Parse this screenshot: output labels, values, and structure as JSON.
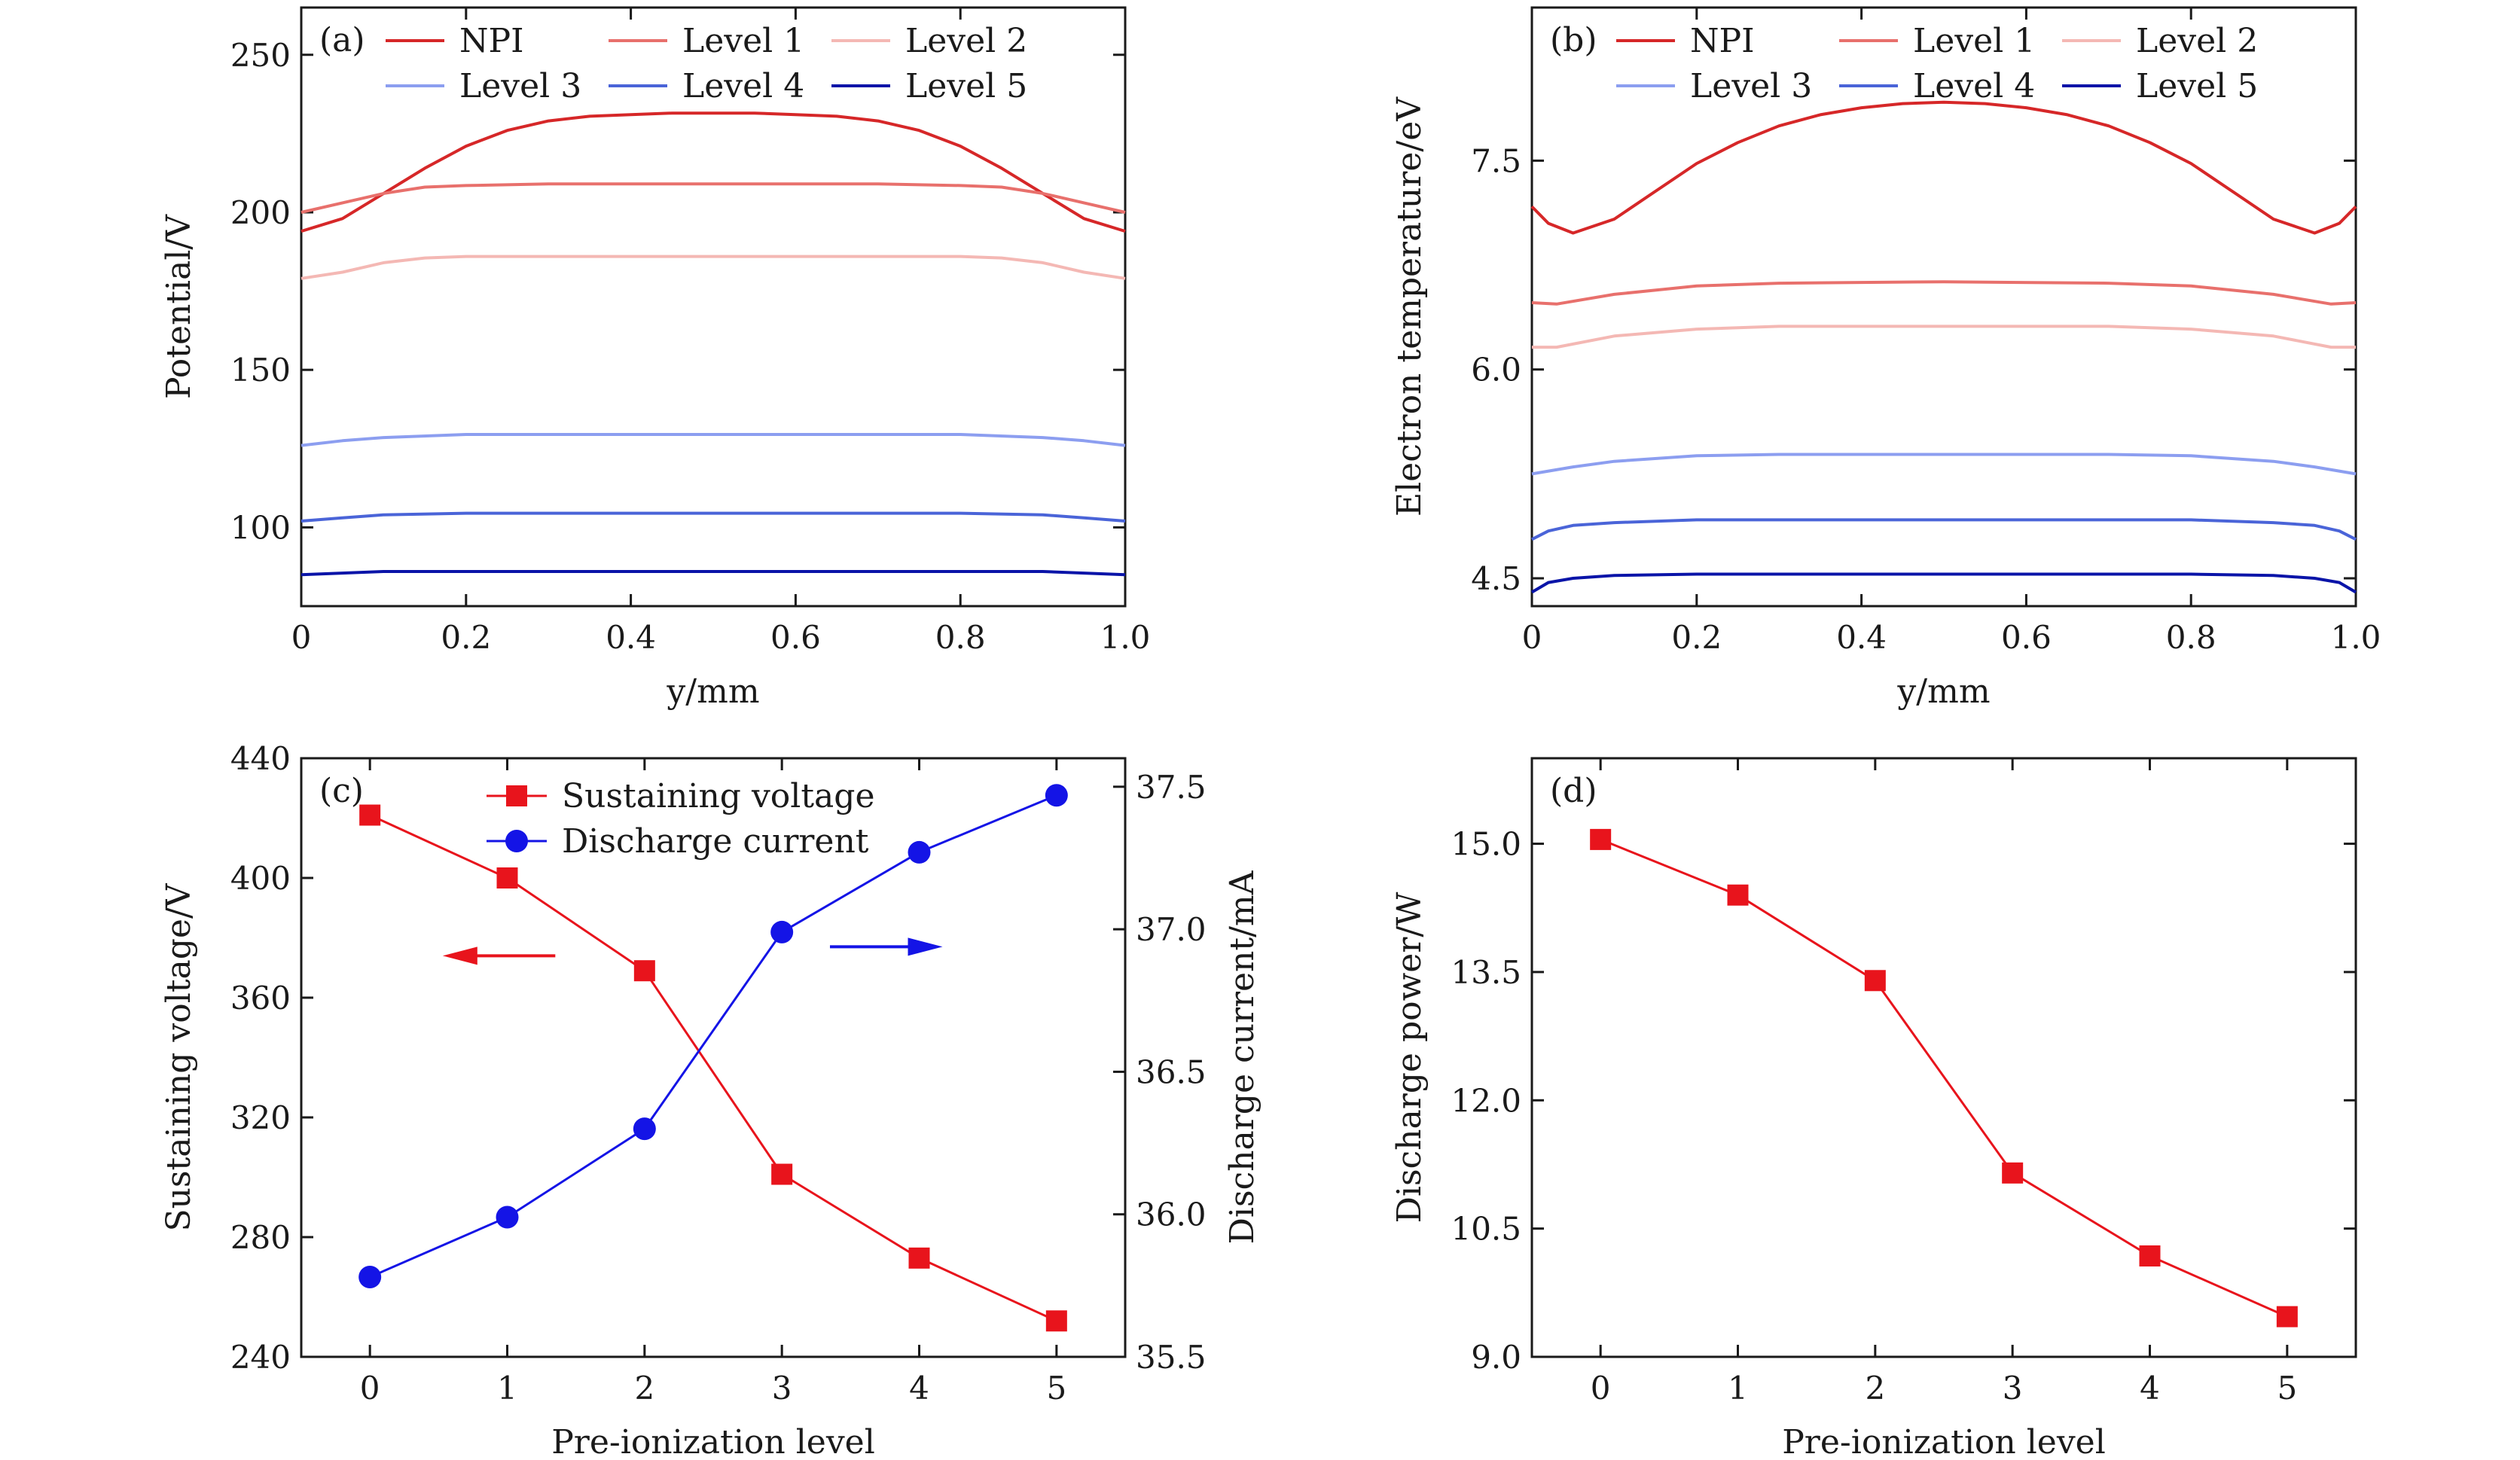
{
  "chart_data": [
    {
      "panel": "(a)",
      "type": "line",
      "xlabel": "y/mm",
      "ylabel": "Potential/V",
      "xlim": [
        0,
        1.0
      ],
      "ylim": [
        75,
        265
      ],
      "xticks": [
        "0",
        "0.2",
        "0.4",
        "0.6",
        "0.8",
        "1.0"
      ],
      "xtick_values": [
        0,
        0.2,
        0.4,
        0.6,
        0.8,
        1.0
      ],
      "yticks": [
        "100",
        "150",
        "200",
        "250"
      ],
      "ytick_values": [
        100,
        150,
        200,
        250
      ],
      "legend_position": "top",
      "series": [
        {
          "name": "NPI",
          "color": "#d62728",
          "x": [
            0,
            0.05,
            0.1,
            0.15,
            0.2,
            0.25,
            0.3,
            0.35,
            0.4,
            0.45,
            0.5,
            0.55,
            0.6,
            0.65,
            0.7,
            0.75,
            0.8,
            0.85,
            0.9,
            0.95,
            1.0
          ],
          "y": [
            194,
            198,
            206,
            214,
            221,
            226,
            229,
            230.5,
            231,
            231.5,
            231.5,
            231.5,
            231,
            230.5,
            229,
            226,
            221,
            214,
            206,
            198,
            194
          ]
        },
        {
          "name": "Level 1",
          "color": "#e8706c",
          "x": [
            0,
            0.05,
            0.1,
            0.15,
            0.2,
            0.3,
            0.5,
            0.7,
            0.8,
            0.85,
            0.9,
            0.95,
            1.0
          ],
          "y": [
            200,
            203,
            206,
            208,
            208.5,
            209,
            209,
            209,
            208.5,
            208,
            206,
            203,
            200
          ]
        },
        {
          "name": "Level 2",
          "color": "#f4b8b4",
          "x": [
            0,
            0.05,
            0.1,
            0.15,
            0.2,
            0.3,
            0.5,
            0.7,
            0.8,
            0.85,
            0.9,
            0.95,
            1.0
          ],
          "y": [
            179,
            181,
            184,
            185.5,
            186,
            186,
            186,
            186,
            186,
            185.5,
            184,
            181,
            179
          ]
        },
        {
          "name": "Level 3",
          "color": "#8c9ef0",
          "x": [
            0,
            0.05,
            0.1,
            0.2,
            0.3,
            0.5,
            0.7,
            0.8,
            0.9,
            0.95,
            1.0
          ],
          "y": [
            126,
            127.5,
            128.5,
            129.5,
            129.5,
            129.5,
            129.5,
            129.5,
            128.5,
            127.5,
            126
          ]
        },
        {
          "name": "Level 4",
          "color": "#4a64d8",
          "x": [
            0,
            0.05,
            0.1,
            0.2,
            0.3,
            0.5,
            0.7,
            0.8,
            0.9,
            0.95,
            1.0
          ],
          "y": [
            102,
            103,
            104,
            104.5,
            104.5,
            104.5,
            104.5,
            104.5,
            104,
            103,
            102
          ]
        },
        {
          "name": "Level 5",
          "color": "#0a14a8",
          "x": [
            0,
            0.05,
            0.1,
            0.2,
            0.5,
            0.8,
            0.9,
            0.95,
            1.0
          ],
          "y": [
            85,
            85.5,
            86,
            86,
            86,
            86,
            86,
            85.5,
            85
          ]
        }
      ]
    },
    {
      "panel": "(b)",
      "type": "line",
      "xlabel": "y/mm",
      "ylabel": "Electron temperature/eV",
      "xlim": [
        0,
        1.0
      ],
      "ylim": [
        4.3,
        8.6
      ],
      "xticks": [
        "0",
        "0.2",
        "0.4",
        "0.6",
        "0.8",
        "1.0"
      ],
      "xtick_values": [
        0,
        0.2,
        0.4,
        0.6,
        0.8,
        1.0
      ],
      "yticks": [
        "4.5",
        "6.0",
        "7.5"
      ],
      "ytick_values": [
        4.5,
        6.0,
        7.5
      ],
      "legend_position": "top",
      "series": [
        {
          "name": "NPI",
          "color": "#d62728",
          "x": [
            0,
            0.02,
            0.05,
            0.1,
            0.15,
            0.2,
            0.25,
            0.3,
            0.35,
            0.4,
            0.45,
            0.5,
            0.55,
            0.6,
            0.65,
            0.7,
            0.75,
            0.8,
            0.85,
            0.9,
            0.95,
            0.98,
            1.0
          ],
          "y": [
            7.17,
            7.05,
            6.98,
            7.08,
            7.28,
            7.48,
            7.63,
            7.75,
            7.83,
            7.88,
            7.91,
            7.92,
            7.91,
            7.88,
            7.83,
            7.75,
            7.63,
            7.48,
            7.28,
            7.08,
            6.98,
            7.05,
            7.17
          ]
        },
        {
          "name": "Level 1",
          "color": "#e8706c",
          "x": [
            0,
            0.03,
            0.1,
            0.2,
            0.3,
            0.5,
            0.7,
            0.8,
            0.9,
            0.97,
            1.0
          ],
          "y": [
            6.48,
            6.47,
            6.54,
            6.6,
            6.62,
            6.63,
            6.62,
            6.6,
            6.54,
            6.47,
            6.48
          ]
        },
        {
          "name": "Level 2",
          "color": "#f4b8b4",
          "x": [
            0,
            0.03,
            0.1,
            0.2,
            0.3,
            0.5,
            0.7,
            0.8,
            0.9,
            0.97,
            1.0
          ],
          "y": [
            6.16,
            6.16,
            6.24,
            6.29,
            6.31,
            6.31,
            6.31,
            6.29,
            6.24,
            6.16,
            6.16
          ]
        },
        {
          "name": "Level 3",
          "color": "#8c9ef0",
          "x": [
            0,
            0.05,
            0.1,
            0.2,
            0.3,
            0.5,
            0.7,
            0.8,
            0.9,
            0.95,
            1.0
          ],
          "y": [
            5.25,
            5.3,
            5.34,
            5.38,
            5.39,
            5.39,
            5.39,
            5.38,
            5.34,
            5.3,
            5.25
          ]
        },
        {
          "name": "Level 4",
          "color": "#4a64d8",
          "x": [
            0,
            0.02,
            0.05,
            0.1,
            0.2,
            0.3,
            0.5,
            0.7,
            0.8,
            0.9,
            0.95,
            0.98,
            1.0
          ],
          "y": [
            4.78,
            4.84,
            4.88,
            4.9,
            4.92,
            4.92,
            4.92,
            4.92,
            4.92,
            4.9,
            4.88,
            4.84,
            4.78
          ]
        },
        {
          "name": "Level 5",
          "color": "#0a14a8",
          "x": [
            0,
            0.02,
            0.05,
            0.1,
            0.2,
            0.5,
            0.8,
            0.9,
            0.95,
            0.98,
            1.0
          ],
          "y": [
            4.4,
            4.47,
            4.5,
            4.52,
            4.53,
            4.53,
            4.53,
            4.52,
            4.5,
            4.47,
            4.4
          ]
        }
      ]
    },
    {
      "panel": "(c)",
      "type": "line",
      "xlabel": "Pre-ionization level",
      "ylabel": "Sustaining voltage/V",
      "ylabel_right": "Discharge current/mA",
      "xlim": [
        -0.5,
        5.5
      ],
      "ylim": [
        240,
        440
      ],
      "ylim_right": [
        35.5,
        37.6
      ],
      "xticks": [
        "0",
        "1",
        "2",
        "3",
        "4",
        "5"
      ],
      "xtick_values": [
        0,
        1,
        2,
        3,
        4,
        5
      ],
      "yticks": [
        "240",
        "280",
        "320",
        "360",
        "400",
        "440"
      ],
      "ytick_values": [
        240,
        280,
        320,
        360,
        400,
        440
      ],
      "yticks_right": [
        "35.5",
        "36.0",
        "36.5",
        "37.0",
        "37.5"
      ],
      "ytick_values_right": [
        35.5,
        36.0,
        36.5,
        37.0,
        37.5
      ],
      "legend_position": "top",
      "series": [
        {
          "name": "Sustaining voltage",
          "axis": "left",
          "marker": "square",
          "color": "#e8141c",
          "x": [
            0,
            1,
            2,
            3,
            4,
            5
          ],
          "y": [
            421,
            400,
            369,
            301,
            273,
            252
          ]
        },
        {
          "name": "Discharge current",
          "axis": "right",
          "marker": "circle",
          "color": "#1414e6",
          "x": [
            0,
            1,
            2,
            3,
            4,
            5
          ],
          "y": [
            35.78,
            35.99,
            36.3,
            36.99,
            37.27,
            37.47
          ]
        }
      ],
      "arrows": [
        {
          "direction": "left",
          "color": "#e8141c"
        },
        {
          "direction": "right",
          "color": "#1414e6"
        }
      ]
    },
    {
      "panel": "(d)",
      "type": "line",
      "xlabel": "Pre-ionization level",
      "ylabel": "Discharge power/W",
      "xlim": [
        -0.5,
        5.5
      ],
      "ylim": [
        9.0,
        16.0
      ],
      "xticks": [
        "0",
        "1",
        "2",
        "3",
        "4",
        "5"
      ],
      "xtick_values": [
        0,
        1,
        2,
        3,
        4,
        5
      ],
      "yticks": [
        "9.0",
        "10.5",
        "12.0",
        "13.5",
        "15.0"
      ],
      "ytick_values": [
        9.0,
        10.5,
        12.0,
        13.5,
        15.0
      ],
      "series": [
        {
          "marker": "square",
          "color": "#e8141c",
          "x": [
            0,
            1,
            2,
            3,
            4,
            5
          ],
          "y": [
            15.05,
            14.4,
            13.4,
            11.15,
            10.18,
            9.47
          ]
        }
      ]
    }
  ]
}
